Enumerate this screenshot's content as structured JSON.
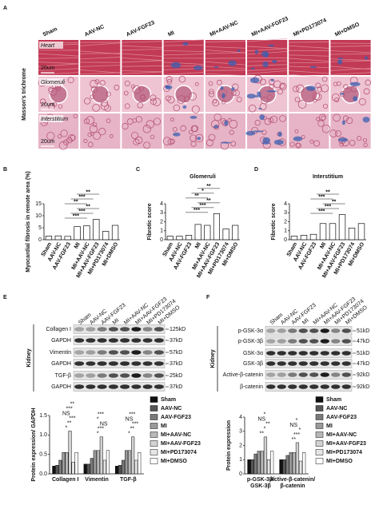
{
  "panel_a": {
    "label": "A",
    "side_label": "Masson's trichrome",
    "columns": [
      "Sham",
      "AAV-NC",
      "AAV-FGF23",
      "MI",
      "MI+AAV-NC",
      "MI+AAV-FGF23",
      "MI+PD173074",
      "MI+DMSO"
    ],
    "rows": [
      {
        "name": "Heart",
        "scale": "20um"
      },
      {
        "name": "Glomeruli",
        "scale": "20um"
      },
      {
        "name": "Interstitium",
        "scale": "20um"
      }
    ]
  },
  "panel_e": {
    "label": "E",
    "side_label": "Kidney",
    "lanes": [
      "Sham",
      "AAV-NC",
      "AAV-FGF23",
      "MI",
      "MI+AAV-NC",
      "MI+AAV-FGF23",
      "MI+PD173074",
      "MI+DMSO"
    ],
    "rows": [
      {
        "name": "Collagen I",
        "kd": "125kD"
      },
      {
        "name": "GAPDH",
        "kd": "37kD"
      },
      {
        "name": "Vimentin",
        "kd": "57kD"
      },
      {
        "name": "GAPDH",
        "kd": "37kD"
      },
      {
        "name": "TGF-β",
        "kd": "25kD"
      },
      {
        "name": "GAPDH",
        "kd": "37kD"
      }
    ]
  },
  "panel_f": {
    "label": "F",
    "side_label": "Kidney",
    "lanes": [
      "Sham",
      "AAV-NC",
      "AAV-FGF23",
      "MI",
      "MI+AAV-NC",
      "MI+AAV-FGF23",
      "MI+PD173074",
      "MI+DMSO"
    ],
    "rows": [
      {
        "name": "p-GSK-3α",
        "kd": "51kD"
      },
      {
        "name": "p-GSK-3β",
        "kd": "47kD"
      },
      {
        "name": "GSK-3α",
        "kd": "51kD"
      },
      {
        "name": "GSK-3β",
        "kd": "47kD"
      },
      {
        "name": "Active-β-catenin",
        "kd": "92kD"
      },
      {
        "name": "β-catenin",
        "kd": "92kD"
      }
    ]
  },
  "chart_data": [
    {
      "type": "bar",
      "panel": "B",
      "ylabel": "Myocardial fibrosis in remote area (%)",
      "categories": [
        "Sham",
        "AAV-NC",
        "AAV-FGF23",
        "MI",
        "MI+AAV-NC",
        "MI+AAV-FGF23",
        "MI+PD173074",
        "MI+DMSO"
      ],
      "values": [
        1.5,
        1.6,
        1.4,
        5.5,
        5.8,
        8.5,
        3.5,
        6.0
      ],
      "color": "#ffffff",
      "ylim": [
        0,
        15
      ],
      "yticks": [
        0,
        5,
        10,
        15
      ],
      "annotations": [
        "***",
        "***",
        "**",
        "**",
        "***",
        "**"
      ]
    },
    {
      "type": "bar",
      "panel": "C",
      "title": "Glomeruli",
      "ylabel": "Fibrotic score",
      "categories": [
        "Sham",
        "AAV-NC",
        "AAV-FGF23",
        "MI",
        "MI+AAV-NC",
        "MI+AAV-FGF23",
        "MI+PD173074",
        "MI+DMSO"
      ],
      "values": [
        0.4,
        0.4,
        0.5,
        1.7,
        1.6,
        2.9,
        1.2,
        1.6
      ],
      "color": "#ffffff",
      "ylim": [
        0,
        4
      ],
      "yticks": [
        0,
        1,
        2,
        3,
        4
      ],
      "annotations": [
        "***",
        "***",
        "**",
        "**",
        "*",
        "**"
      ]
    },
    {
      "type": "bar",
      "panel": "D",
      "title": "Interstitium",
      "ylabel": "Fibrotic score",
      "categories": [
        "Sham",
        "AAV-NC",
        "AAV-FGF23",
        "MI",
        "MI+AAV-NC",
        "MI+AAV-FGF23",
        "MI+PD173074",
        "MI+DMSO"
      ],
      "values": [
        0.4,
        0.5,
        0.6,
        1.8,
        1.8,
        2.8,
        1.3,
        1.8
      ],
      "color": "#ffffff",
      "ylim": [
        0,
        4
      ],
      "yticks": [
        0,
        1,
        2,
        3,
        4
      ],
      "annotations": [
        "***",
        "***",
        "**",
        "***",
        "**"
      ]
    },
    {
      "type": "grouped-bar",
      "ylabel": "Protein expression/ GAPDH",
      "categories": [
        [
          "Collagen I"
        ],
        [
          "Vimentin"
        ],
        [
          "TGF-β"
        ]
      ],
      "ylim": [
        0,
        1.5
      ],
      "yticks": [
        {
          "value": 0,
          "label": "0.0"
        },
        0.5,
        {
          "value": 1,
          "label": "1.0"
        },
        1.5
      ],
      "series": [
        {
          "name": "Sham",
          "color": "#111111",
          "values": [
            0.2,
            0.25,
            0.2
          ]
        },
        {
          "name": "AAV-NC",
          "color": "#555555",
          "values": [
            0.22,
            0.25,
            0.22
          ]
        },
        {
          "name": "AAV-FGF23",
          "color": "#7a7a7a",
          "values": [
            0.35,
            0.4,
            0.35
          ]
        },
        {
          "name": "MI",
          "color": "#9a9a9a",
          "values": [
            0.55,
            0.6,
            0.6
          ]
        },
        {
          "name": "MI+AAV-NC",
          "color": "#b8b8b8",
          "values": [
            0.55,
            0.6,
            0.6
          ]
        },
        {
          "name": "MI+AAV-FGF23",
          "color": "#d2d2d2",
          "values": [
            1.1,
            0.95,
            0.95
          ]
        },
        {
          "name": "MI+PD173074",
          "color": "#e6e6e6",
          "values": [
            0.3,
            0.35,
            0.35
          ]
        },
        {
          "name": "MI+DMSO",
          "color": "#ffffff",
          "values": [
            0.55,
            0.6,
            0.55
          ]
        }
      ],
      "annotations": [
        [
          "*",
          "**",
          "***",
          "NS",
          "***",
          "**"
        ],
        [
          "*",
          "***",
          "NS",
          "*",
          "***"
        ],
        [
          "*",
          "**",
          "***",
          "NS",
          "***"
        ]
      ]
    },
    {
      "type": "grouped-bar",
      "ylabel": "Protein expression",
      "categories": [
        [
          "p-GSK-3β/",
          "GSK-3β"
        ],
        [
          "Active-β-catenin/",
          "β-catenin"
        ]
      ],
      "ylim": [
        0,
        4
      ],
      "yticks": [
        0,
        1,
        2,
        3,
        4
      ],
      "series": [
        {
          "name": "Sham",
          "color": "#111111",
          "values": [
            1,
            1
          ]
        },
        {
          "name": "AAV-NC",
          "color": "#555555",
          "values": [
            1,
            1
          ]
        },
        {
          "name": "AAV-FGF23",
          "color": "#7a7a7a",
          "values": [
            1.4,
            1.3
          ]
        },
        {
          "name": "MI",
          "color": "#9a9a9a",
          "values": [
            1.6,
            1.5
          ]
        },
        {
          "name": "MI+AAV-NC",
          "color": "#b8b8b8",
          "values": [
            1.6,
            1.5
          ]
        },
        {
          "name": "MI+AAV-FGF23",
          "color": "#d2d2d2",
          "values": [
            2.6,
            2.2
          ]
        },
        {
          "name": "MI+PD173074",
          "color": "#e6e6e6",
          "values": [
            1.0,
            0.9
          ]
        },
        {
          "name": "MI+DMSO",
          "color": "#ffffff",
          "values": [
            1.6,
            1.5
          ]
        }
      ],
      "annotations": [
        [
          "**",
          "*",
          "**",
          "NS",
          "*"
        ],
        [
          "**",
          "***",
          "*",
          "NS",
          "*"
        ]
      ]
    }
  ]
}
